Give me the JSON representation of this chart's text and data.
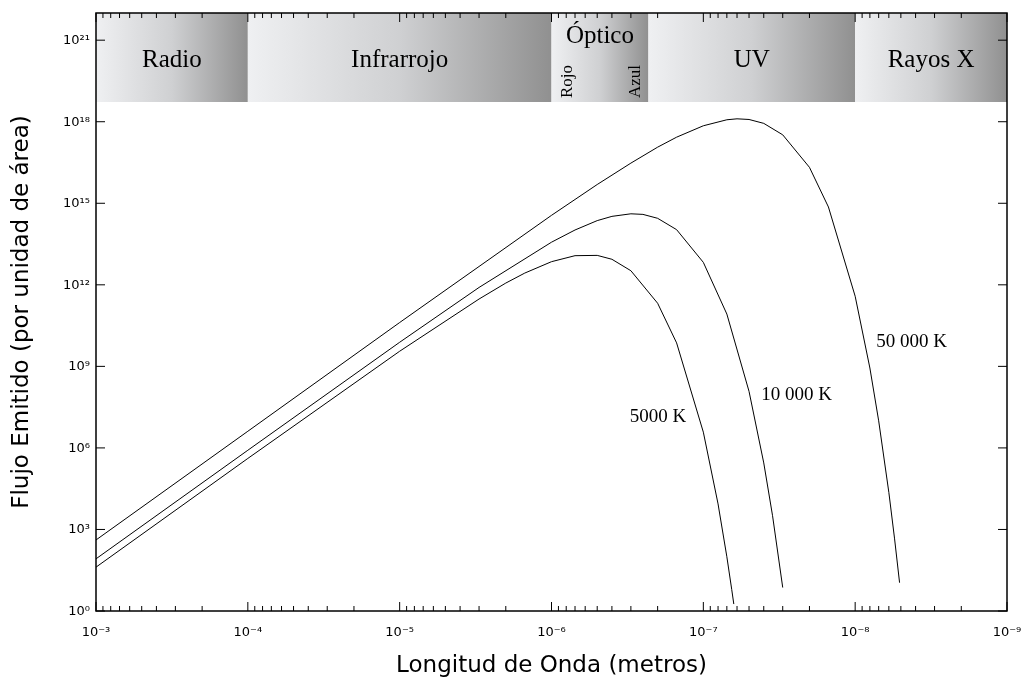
{
  "chart_data": {
    "type": "line",
    "xlabel": "Longitud de Onda (metros)",
    "ylabel": "Flujo Emitido (por unidad de área)",
    "log": "xy",
    "xlim": [
      0.001,
      1e-09
    ],
    "ylim": [
      1,
      1e+22
    ],
    "xticks": [
      {
        "value": 0.001,
        "label": "10⁻³"
      },
      {
        "value": 0.0001,
        "label": "10⁻⁴"
      },
      {
        "value": 1e-05,
        "label": "10⁻⁵"
      },
      {
        "value": 1e-06,
        "label": "10⁻⁶"
      },
      {
        "value": 1e-07,
        "label": "10⁻⁷"
      },
      {
        "value": 1e-08,
        "label": "10⁻⁸"
      },
      {
        "value": 1e-09,
        "label": "10⁻⁹"
      },
      {
        "value": 0.0009,
        "label": null
      },
      {
        "value": 0.0008,
        "label": null
      },
      {
        "value": 0.0007,
        "label": null
      },
      {
        "value": 0.0006,
        "label": null
      },
      {
        "value": 0.0005,
        "label": null
      },
      {
        "value": 0.0004,
        "label": null
      },
      {
        "value": 0.0003,
        "label": null
      },
      {
        "value": 0.0002,
        "label": null
      },
      {
        "value": 9e-05,
        "label": null
      },
      {
        "value": 8e-05,
        "label": null
      },
      {
        "value": 7e-05,
        "label": null
      },
      {
        "value": 6e-05,
        "label": null
      },
      {
        "value": 5e-05,
        "label": null
      },
      {
        "value": 4e-05,
        "label": null
      },
      {
        "value": 3e-05,
        "label": null
      },
      {
        "value": 2e-05,
        "label": null
      },
      {
        "value": 9e-06,
        "label": null
      },
      {
        "value": 8e-06,
        "label": null
      },
      {
        "value": 7e-06,
        "label": null
      },
      {
        "value": 6e-06,
        "label": null
      },
      {
        "value": 5e-06,
        "label": null
      },
      {
        "value": 4e-06,
        "label": null
      },
      {
        "value": 3e-06,
        "label": null
      },
      {
        "value": 2e-06,
        "label": null
      },
      {
        "value": 9e-07,
        "label": null
      },
      {
        "value": 8e-07,
        "label": null
      },
      {
        "value": 7e-07,
        "label": null
      },
      {
        "value": 6e-07,
        "label": null
      },
      {
        "value": 5e-07,
        "label": null
      },
      {
        "value": 4e-07,
        "label": null
      },
      {
        "value": 3e-07,
        "label": null
      },
      {
        "value": 2e-07,
        "label": null
      },
      {
        "value": 9e-08,
        "label": null
      },
      {
        "value": 8e-08,
        "label": null
      },
      {
        "value": 7e-08,
        "label": null
      },
      {
        "value": 6e-08,
        "label": null
      },
      {
        "value": 5e-08,
        "label": null
      },
      {
        "value": 4e-08,
        "label": null
      },
      {
        "value": 3e-08,
        "label": null
      },
      {
        "value": 2e-08,
        "label": null
      },
      {
        "value": 9e-09,
        "label": null
      },
      {
        "value": 8e-09,
        "label": null
      },
      {
        "value": 7e-09,
        "label": null
      },
      {
        "value": 6e-09,
        "label": null
      },
      {
        "value": 5e-09,
        "label": null
      },
      {
        "value": 4e-09,
        "label": null
      },
      {
        "value": 3e-09,
        "label": null
      },
      {
        "value": 2e-09,
        "label": null
      }
    ],
    "yticks": [
      {
        "value": 1,
        "label": "10⁰"
      },
      {
        "value": 1000,
        "label": "10³"
      },
      {
        "value": 1000000,
        "label": "10⁶"
      },
      {
        "value": 1000000000.0,
        "label": "10⁹"
      },
      {
        "value": 1000000000000.0,
        "label": "10¹²"
      },
      {
        "value": 1000000000000000.0,
        "label": "10¹⁵"
      },
      {
        "value": 1e+18,
        "label": "10¹⁸"
      },
      {
        "value": 1e+21,
        "label": "10²¹"
      }
    ],
    "grid": false,
    "legend": false,
    "series": [
      {
        "name": "5000 K",
        "color": "#000000",
        "x": [
          0.001,
          0.0001,
          1e-05,
          3e-06,
          2e-06,
          1.5e-06,
          1e-06,
          7e-07,
          5e-07,
          4e-07,
          3e-07,
          2e-07,
          1.5e-07,
          1e-07,
          8e-08,
          7e-08,
          6.5e-08,
          6.3e-08
        ],
        "values": [
          41,
          410000,
          3600000000,
          300000000000,
          1160000000000,
          2700000000000,
          7100000000000,
          11800000000000,
          12100000000000,
          8700000000000,
          3300000000000,
          210000000000,
          7300000000,
          3800000,
          8700,
          99,
          6.1,
          1.8
        ]
      },
      {
        "name": "10 000 K",
        "color": "#000000",
        "x": [
          0.001,
          0.0001,
          1e-05,
          3e-06,
          1e-06,
          7e-07,
          5e-07,
          4e-07,
          3e-07,
          2.5e-07,
          2e-07,
          1.5e-07,
          1e-07,
          7e-08,
          5e-08,
          4e-08,
          3.5e-08,
          3e-08
        ],
        "values": [
          83,
          820000,
          7700000000,
          800000000000,
          37000000000000,
          104000000000000,
          230000000000000,
          330000000000000,
          410000000000000,
          390000000000000,
          280000000000000,
          107000000000000,
          6700000000000,
          84000000000,
          120000000,
          280000,
          3200,
          7.3
        ]
      },
      {
        "name": "50 000 K",
        "color": "#000000",
        "x": [
          0.001,
          0.0001,
          1e-05,
          1e-06,
          5e-07,
          3e-07,
          2e-07,
          1.5e-07,
          1e-07,
          7e-08,
          6e-08,
          5e-08,
          4e-08,
          3e-08,
          2e-08,
          1.5e-08,
          1e-08,
          8e-09,
          7e-09,
          6e-09,
          5.5e-09,
          5.1e-09
        ],
        "values": [
          410,
          4100000,
          41000000000,
          360000000000000,
          4900000000000000,
          30000000000000000,
          116000000000000000,
          270000000000000000,
          710000000000000000,
          1180000000000000000,
          1280000000000000000,
          1210000000000000000,
          870000000000000000,
          330000000000000000,
          21000000000000000,
          730000000000000,
          380000000000,
          870000000,
          9900000,
          23000,
          450,
          11
        ]
      }
    ],
    "bands": [
      {
        "axis": "x",
        "from": 0.001,
        "to": 0.0001,
        "label": "Radio"
      },
      {
        "axis": "x",
        "from": 0.0001,
        "to": 1e-06,
        "label": "Infrarrojo"
      },
      {
        "axis": "x",
        "from": 1e-06,
        "to": 2.3e-07,
        "label": "Óptico"
      },
      {
        "axis": "x",
        "from": 2.3e-07,
        "to": 1e-08,
        "label": "UV"
      },
      {
        "axis": "x",
        "from": 1e-08,
        "to": 1e-09,
        "label": "Rayos X"
      }
    ],
    "annotations": [
      "Rojo",
      "Azul"
    ]
  }
}
